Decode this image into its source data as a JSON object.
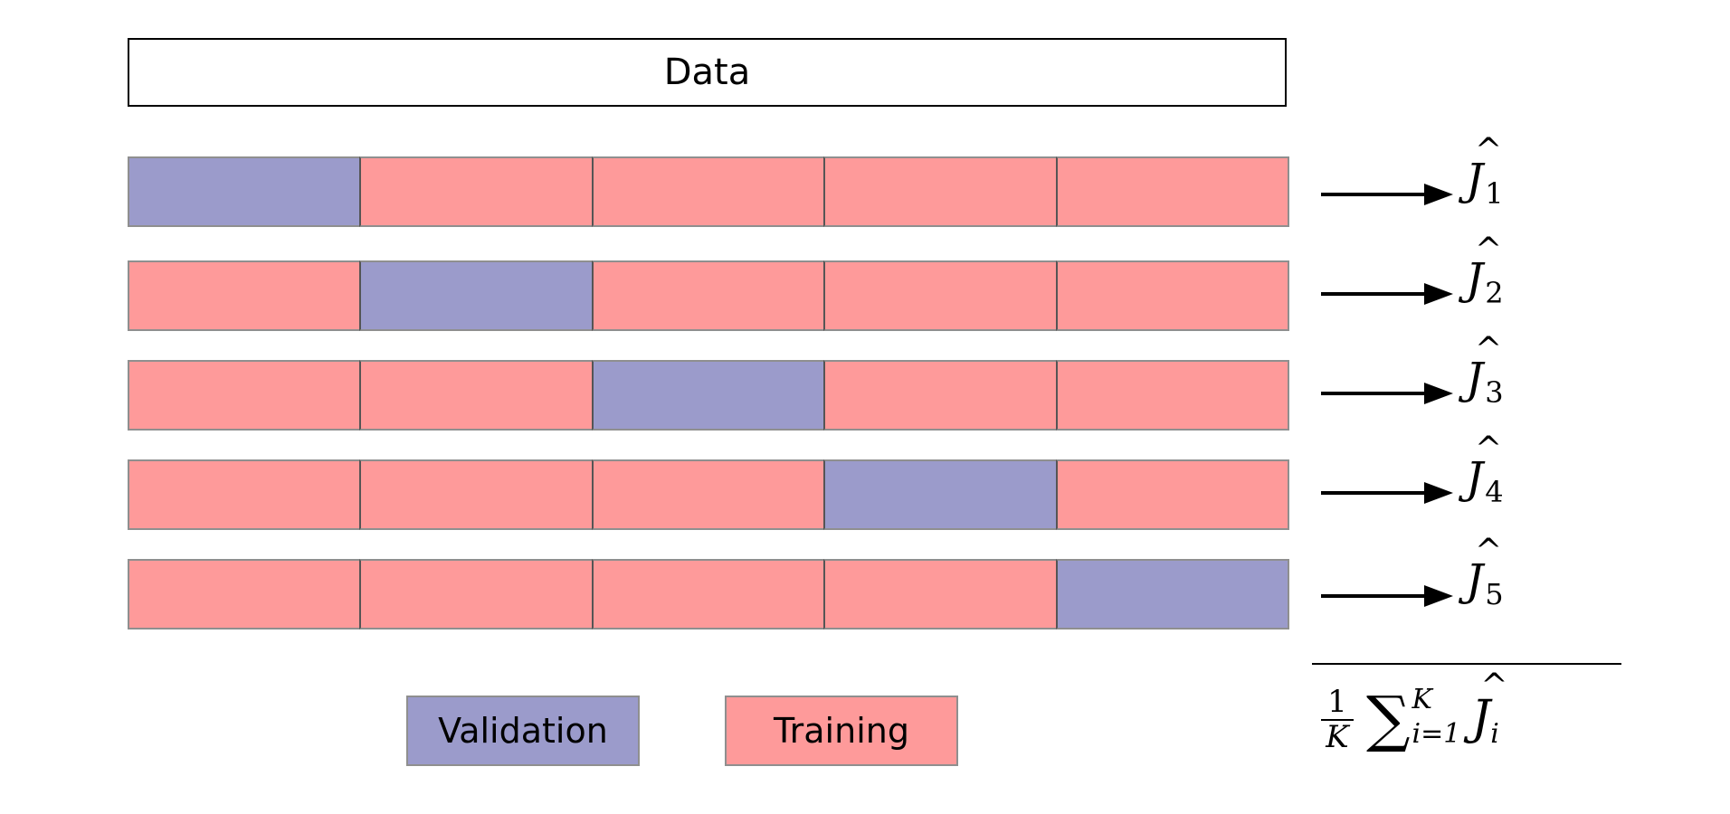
{
  "title": "Data",
  "colors": {
    "validation": "#9b9bcb",
    "training": "#fe9a9a",
    "outline": "#8f8f8f",
    "divider": "#555555"
  },
  "folds": [
    {
      "validation_index": 0,
      "estimate_symbol": "J",
      "estimate_subscript": "1"
    },
    {
      "validation_index": 1,
      "estimate_symbol": "J",
      "estimate_subscript": "2"
    },
    {
      "validation_index": 2,
      "estimate_symbol": "J",
      "estimate_subscript": "3"
    },
    {
      "validation_index": 3,
      "estimate_symbol": "J",
      "estimate_subscript": "4"
    },
    {
      "validation_index": 4,
      "estimate_symbol": "J",
      "estimate_subscript": "5"
    }
  ],
  "segments_per_fold": 5,
  "average": {
    "numerator": "1",
    "denominator": "K",
    "sum_symbol": "∑",
    "upper_limit": "K",
    "lower_limit": "i=1",
    "term_symbol": "J",
    "term_subscript": "i"
  },
  "legend": {
    "validation": "Validation",
    "training": "Training"
  }
}
